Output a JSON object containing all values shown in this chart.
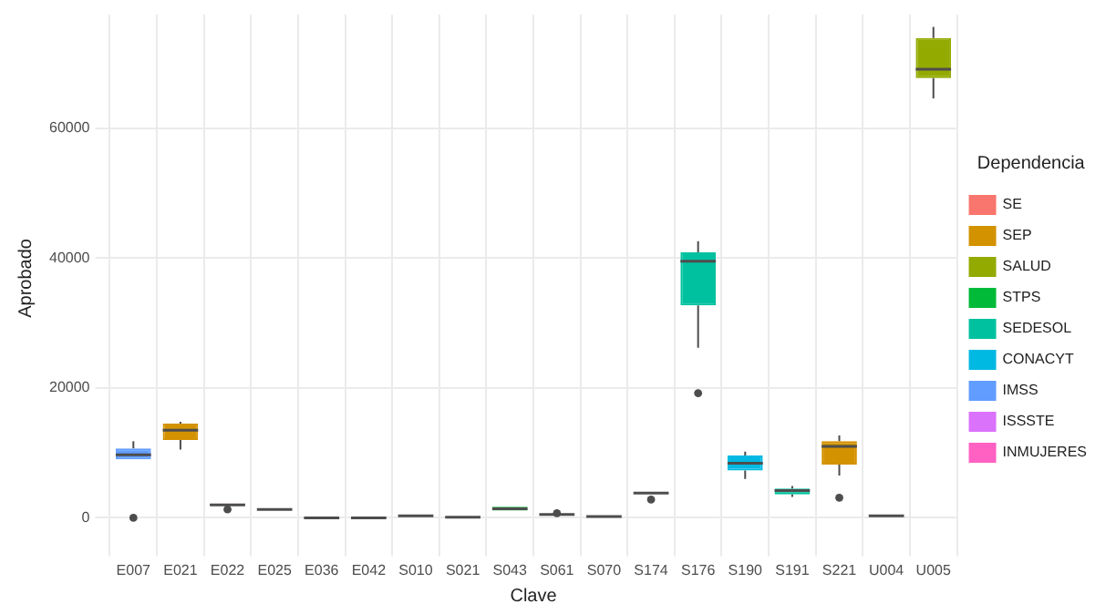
{
  "chart_data": {
    "type": "box",
    "xlabel": "Clave",
    "ylabel": "Aprobado",
    "legend_title": "Dependencia",
    "legend": "right",
    "grid": true,
    "categories": [
      "E007",
      "E021",
      "E022",
      "E025",
      "E036",
      "E042",
      "S010",
      "S021",
      "S043",
      "S061",
      "S070",
      "S174",
      "S176",
      "S190",
      "S191",
      "S221",
      "U004",
      "U005"
    ],
    "ylim": [
      -3700,
      77500
    ],
    "yticks": [
      0,
      20000,
      40000,
      60000
    ],
    "series": [
      {
        "name": "SE",
        "color": "#f8766d",
        "boxes": [
          null,
          null,
          {
            "low": 1900,
            "q1": 1900,
            "median": 2000,
            "q3": 2200,
            "high": 2200,
            "outliers": [
              1300
            ]
          },
          {
            "low": 1250,
            "q1": 1250,
            "median": 1300,
            "q3": 1350,
            "high": 1350
          },
          null,
          null,
          null,
          {
            "low": 50,
            "q1": 50,
            "median": 100,
            "q3": 150,
            "high": 150
          },
          null,
          null,
          null,
          null,
          null,
          null,
          null,
          null,
          {
            "low": 250,
            "q1": 250,
            "median": 300,
            "q3": 350,
            "high": 350
          },
          null
        ]
      },
      {
        "name": "SEP",
        "color": "#d39200",
        "boxes": [
          null,
          {
            "low": 10500,
            "q1": 12000,
            "median": 13500,
            "q3": 14500,
            "high": 14800
          },
          null,
          null,
          null,
          null,
          null,
          null,
          null,
          null,
          null,
          null,
          null,
          null,
          null,
          {
            "low": 6500,
            "q1": 8200,
            "median": 11000,
            "q3": 11800,
            "high": 12700,
            "outliers": [
              3100
            ]
          },
          null,
          null
        ]
      },
      {
        "name": "SALUD",
        "color": "#93aa00",
        "boxes": [
          null,
          null,
          null,
          null,
          null,
          null,
          null,
          null,
          null,
          null,
          null,
          null,
          null,
          null,
          null,
          null,
          null,
          {
            "low": 64600,
            "q1": 67700,
            "median": 69100,
            "q3": 73900,
            "high": 75600
          }
        ]
      },
      {
        "name": "STPS",
        "color": "#00ba38",
        "boxes": [
          null,
          null,
          null,
          null,
          null,
          null,
          null,
          null,
          {
            "low": 1100,
            "q1": 1100,
            "median": 1400,
            "q3": 1700,
            "high": 1700
          },
          null,
          null,
          null,
          null,
          null,
          null,
          null,
          null,
          null
        ]
      },
      {
        "name": "SEDESOL",
        "color": "#00c19f",
        "boxes": [
          null,
          null,
          null,
          null,
          null,
          null,
          null,
          null,
          null,
          {
            "low": 450,
            "q1": 450,
            "median": 500,
            "q3": 600,
            "high": 600,
            "outliers": [
              700
            ]
          },
          {
            "low": 150,
            "q1": 150,
            "median": 200,
            "q3": 250,
            "high": 250
          },
          {
            "low": 3700,
            "q1": 3700,
            "median": 3800,
            "q3": 3900,
            "high": 3900,
            "outliers": [
              2800
            ]
          },
          {
            "low": 26200,
            "q1": 32700,
            "median": 39500,
            "q3": 40900,
            "high": 42600,
            "outliers": [
              19200
            ]
          },
          null,
          {
            "low": 3200,
            "q1": 3600,
            "median": 4200,
            "q3": 4500,
            "high": 4900
          },
          null,
          null,
          null
        ]
      },
      {
        "name": "CONACYT",
        "color": "#00b9e3",
        "boxes": [
          null,
          null,
          null,
          null,
          null,
          null,
          null,
          null,
          null,
          null,
          null,
          null,
          null,
          {
            "low": 6000,
            "q1": 7300,
            "median": 8400,
            "q3": 9600,
            "high": 10200
          },
          null,
          null,
          null,
          null
        ]
      },
      {
        "name": "IMSS",
        "color": "#619cff",
        "boxes": [
          {
            "low": 9000,
            "q1": 9000,
            "median": 9700,
            "q3": 10700,
            "high": 11800,
            "outliers": [
              0
            ]
          },
          null,
          null,
          null,
          null,
          null,
          null,
          null,
          null,
          null,
          null,
          null,
          null,
          null,
          null,
          null,
          null,
          null
        ]
      },
      {
        "name": "ISSSTE",
        "color": "#db72fb",
        "boxes": [
          null,
          null,
          null,
          null,
          {
            "low": -150,
            "q1": -150,
            "median": 0,
            "q3": 150,
            "high": 150
          },
          {
            "low": -150,
            "q1": -150,
            "median": 0,
            "q3": 150,
            "high": 150
          },
          null,
          null,
          null,
          null,
          null,
          null,
          null,
          null,
          null,
          null,
          null,
          null
        ]
      },
      {
        "name": "INMUJERES",
        "color": "#ff61c3",
        "boxes": [
          null,
          null,
          null,
          null,
          null,
          null,
          {
            "low": 200,
            "q1": 200,
            "median": 300,
            "q3": 400,
            "high": 400
          },
          null,
          null,
          null,
          null,
          null,
          null,
          null,
          null,
          null,
          null,
          null
        ]
      }
    ]
  }
}
